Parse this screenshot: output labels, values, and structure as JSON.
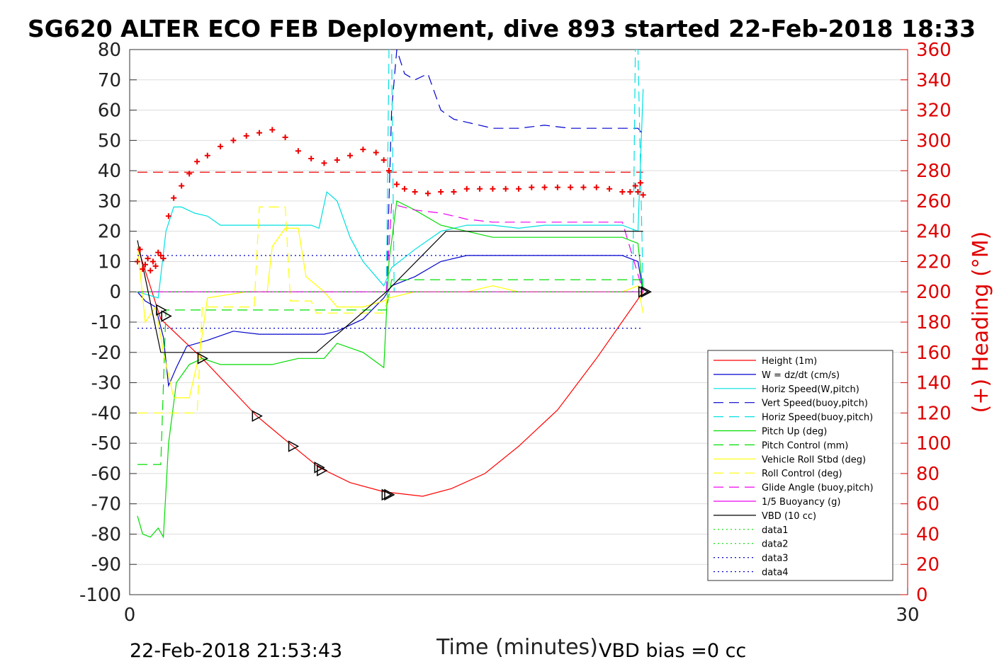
{
  "title": "SG620 ALTER ECO FEB Deployment, dive 893 started 22-Feb-2018 18:33",
  "footer_left": "22-Feb-2018 21:53:43",
  "footer_right": "VBD bias =0 cc",
  "colors": {
    "height": "#ff0000",
    "w": "#0000cc",
    "horiz": "#00e0e0",
    "pitch": "#00dd00",
    "roll": "#ffff00",
    "glide": "#ee00ee",
    "vbd": "#000000",
    "heading": "#ee0000"
  },
  "chart_data": {
    "type": "line",
    "xlabel": "Time (minutes)",
    "ylabel_right": "(+) Heading (°M)",
    "xlim": [
      0,
      30
    ],
    "ylim": [
      -100,
      80
    ],
    "ylim_right": [
      0,
      360
    ],
    "x_ticks": [
      "0",
      "30"
    ],
    "y_ticks": [
      "80",
      "70",
      "60",
      "50",
      "40",
      "30",
      "20",
      "10",
      "0",
      "-10",
      "-20",
      "-30",
      "-40",
      "-50",
      "-60",
      "-70",
      "-80",
      "-90",
      "-100"
    ],
    "y_ticks_right": [
      "360",
      "340",
      "320",
      "300",
      "280",
      "260",
      "240",
      "220",
      "200",
      "180",
      "160",
      "140",
      "120",
      "100",
      "80",
      "60",
      "40",
      "20",
      "0"
    ],
    "grid": "horizontal",
    "legend_position": "bottom-right",
    "series": [
      {
        "name": "Height (1m)",
        "color": "#ff0000",
        "dash": "solid",
        "x": [
          0.3,
          1.2,
          2.8,
          4.9,
          6.3,
          7.3,
          8.5,
          9.8,
          11.3,
          12.4,
          13.7,
          15.0,
          16.5,
          18.0,
          19.8
        ],
        "y": [
          15,
          -9,
          -22,
          -41,
          -51,
          -58,
          -63,
          -66,
          -67.5,
          -65,
          -60,
          -51,
          -39,
          -22,
          0
        ]
      },
      {
        "name": "W = dz/dt (cm/s)",
        "color": "#0000cc",
        "dash": "solid",
        "x": [
          0.3,
          0.6,
          1.0,
          1.3,
          1.5,
          1.8,
          2.2,
          3.0,
          4.0,
          5.0,
          6.0,
          7.0,
          7.5,
          8.0,
          9.0,
          9.8,
          10.1,
          11.0,
          12.0,
          13.0,
          14.0,
          15.0,
          16.0,
          17.0,
          18.0,
          19.0,
          19.6,
          19.8
        ],
        "y": [
          0,
          -3,
          -5,
          -15,
          -31,
          -25,
          -18,
          -16,
          -13,
          -14,
          -14,
          -14,
          -14,
          -13,
          -9,
          -2,
          2,
          5,
          10,
          12,
          12,
          12,
          12,
          12,
          12,
          12,
          10,
          0
        ]
      },
      {
        "name": "Horiz Speed(W,pitch)",
        "color": "#00e0e0",
        "dash": "solid",
        "x": [
          0.3,
          1.1,
          1.4,
          1.7,
          2.0,
          2.5,
          3.0,
          3.5,
          4.0,
          5.0,
          6.0,
          7.0,
          7.3,
          7.6,
          8.0,
          8.5,
          9.0,
          9.5,
          9.8,
          10.1,
          11.0,
          12.0,
          13.0,
          14.0,
          15.0,
          16.0,
          17.0,
          18.0,
          19.0,
          19.6,
          19.8
        ],
        "y": [
          0,
          -2,
          20,
          28,
          28,
          26,
          25,
          22,
          22,
          22,
          22,
          22,
          21,
          33,
          30,
          18,
          10,
          5,
          2,
          8,
          14,
          20,
          22,
          22,
          21,
          22,
          22,
          22,
          22,
          20,
          67
        ]
      },
      {
        "name": "Vert Speed(buoy,pitch)",
        "color": "#0000cc",
        "dash": "long",
        "x": [
          9.9,
          10.1,
          10.3,
          10.6,
          11.0,
          11.5,
          12.0,
          12.5,
          13.0,
          14.0,
          15.0,
          16.0,
          17.0,
          18.0,
          19.0,
          19.6,
          19.8
        ],
        "y": [
          0,
          60,
          80,
          72,
          70,
          72,
          60,
          57,
          56,
          54,
          54,
          55,
          54,
          54,
          54,
          54,
          52
        ]
      },
      {
        "name": "Horiz Speed(buoy,pitch)",
        "color": "#00e0e0",
        "dash": "long",
        "x": [
          9.9,
          10.0,
          10.1,
          10.2,
          19.4,
          19.5,
          19.6,
          19.7,
          19.8
        ],
        "y": [
          0,
          80,
          80,
          0,
          0,
          80,
          80,
          40,
          0
        ]
      },
      {
        "name": "Pitch Up (deg)",
        "color": "#00dd00",
        "dash": "solid",
        "x": [
          0.3,
          0.5,
          0.8,
          1.1,
          1.3,
          1.5,
          1.8,
          2.3,
          2.8,
          3.5,
          4.5,
          5.5,
          6.5,
          7.0,
          7.5,
          8.0,
          9.0,
          9.8,
          10.0,
          10.3,
          11.0,
          12.0,
          13.0,
          14.0,
          15.0,
          16.0,
          17.0,
          18.0,
          19.0,
          19.6,
          19.8
        ],
        "y": [
          -74,
          -80,
          -81,
          -78,
          -81,
          -50,
          -30,
          -24,
          -22,
          -24,
          -24,
          -24,
          -22,
          -22,
          -22,
          -17,
          -20,
          -25,
          10,
          30,
          27,
          22,
          20,
          18,
          18,
          18,
          18,
          18,
          18,
          16,
          0
        ]
      },
      {
        "name": "Pitch Control (mm)",
        "color": "#00dd00",
        "dash": "long",
        "x": [
          0.3,
          1.2,
          1.4,
          9.9,
          10.1,
          19.8
        ],
        "y": [
          -57,
          -57,
          -6,
          -6,
          4,
          4
        ]
      },
      {
        "name": "Vehicle Roll Stbd (deg)",
        "color": "#ffff00",
        "dash": "solid",
        "x": [
          0.3,
          0.6,
          1.0,
          1.3,
          1.7,
          2.3,
          2.7,
          3.0,
          4.5,
          5.0,
          5.3,
          5.5,
          6.0,
          6.3,
          6.5,
          6.8,
          7.5,
          8.0,
          9.0,
          9.8,
          10.0,
          11.0,
          12.0,
          13.0,
          14.0,
          15.0,
          16.0,
          17.0,
          18.0,
          19.0,
          19.6,
          19.8
        ],
        "y": [
          15,
          -10,
          -5,
          -20,
          -35,
          -35,
          -20,
          -2,
          0,
          0,
          0,
          15,
          21,
          21,
          21,
          5,
          0,
          -5,
          -5,
          -3,
          -2,
          0,
          0,
          0,
          2,
          0,
          0,
          0,
          0,
          0,
          2,
          -7
        ]
      },
      {
        "name": "Roll Control (deg)",
        "color": "#ffff00",
        "dash": "long",
        "x": [
          0.3,
          1.2,
          1.4,
          2.6,
          2.8,
          4.8,
          5.0,
          6.0,
          6.2,
          7.0,
          7.2,
          9.8,
          10.0,
          19.8
        ],
        "y": [
          -40,
          -40,
          -40,
          -40,
          -5,
          -5,
          28,
          28,
          -3,
          -3,
          -7,
          -7,
          0,
          0
        ]
      },
      {
        "name": "Glide Angle (buoy,pitch)",
        "color": "#ee00ee",
        "dash": "long",
        "x": [
          0.3,
          9.9,
          10.1,
          11.0,
          12.0,
          13.0,
          14.0,
          15.0,
          16.0,
          17.0,
          18.0,
          19.0,
          19.8
        ],
        "y": [
          0,
          0,
          29,
          27,
          26,
          24,
          23,
          23,
          23,
          23,
          23,
          23,
          0
        ]
      },
      {
        "name": "1/5 Buoyancy (g)",
        "color": "#ee00ee",
        "dash": "solid",
        "x": [
          0.3,
          19.8
        ],
        "y": [
          0,
          0
        ]
      },
      {
        "name": "VBD (10 cc)",
        "color": "#000000",
        "dash": "solid",
        "x": [
          0.3,
          1.2,
          7.2,
          9.9,
          12.2,
          19.8
        ],
        "y": [
          17,
          -20,
          -20,
          0,
          20,
          20
        ]
      },
      {
        "name": "data1",
        "color": "#00dd00",
        "dash": "dotted",
        "x": [
          0.3,
          19.8
        ],
        "y": [
          0,
          0
        ]
      },
      {
        "name": "data2",
        "color": "#00dd00",
        "dash": "dotted",
        "x": [
          0.3,
          19.8
        ],
        "y": [
          0,
          0
        ]
      },
      {
        "name": "data3",
        "color": "#0000cc",
        "dash": "dotted",
        "x": [
          0.3,
          19.8
        ],
        "y": [
          12,
          12
        ]
      },
      {
        "name": "data4",
        "color": "#0000cc",
        "dash": "dotted",
        "x": [
          0.3,
          19.8
        ],
        "y": [
          -12,
          -12
        ]
      }
    ],
    "heading_reference": {
      "axis": "right",
      "value": 279,
      "color": "#ee0000",
      "dash": "long"
    },
    "heading_points": {
      "axis": "right",
      "color": "#ee0000",
      "x": [
        0.3,
        0.4,
        0.5,
        0.6,
        0.7,
        0.8,
        0.9,
        1.0,
        1.1,
        1.2,
        1.3,
        1.5,
        1.7,
        2.0,
        2.3,
        2.6,
        3.0,
        3.5,
        4.0,
        4.5,
        5.0,
        5.5,
        6.0,
        6.5,
        7.0,
        7.5,
        8.0,
        8.5,
        9.0,
        9.5,
        9.8,
        10.0,
        10.3,
        10.6,
        11.0,
        11.5,
        12.0,
        12.5,
        13.0,
        13.5,
        14.0,
        14.5,
        15.0,
        15.5,
        16.0,
        16.5,
        17.0,
        17.5,
        18.0,
        18.5,
        19.0,
        19.3,
        19.5,
        19.6,
        19.7,
        19.8
      ],
      "y": [
        220,
        228,
        215,
        218,
        222,
        214,
        220,
        217,
        226,
        224,
        222,
        250,
        262,
        270,
        278,
        286,
        290,
        296,
        300,
        303,
        305,
        307,
        302,
        293,
        288,
        285,
        287,
        290,
        294,
        292,
        287,
        280,
        271,
        268,
        266,
        265,
        266,
        266,
        268,
        268,
        268,
        268,
        268,
        269,
        269,
        269,
        269,
        269,
        269,
        268,
        266,
        266,
        270,
        266,
        272,
        264
      ]
    },
    "markers": {
      "symbol": "triangle",
      "x": [
        1.2,
        1.4,
        2.8,
        4.9,
        6.3,
        7.3,
        7.4,
        9.9,
        10.0,
        19.8,
        19.9
      ],
      "y": [
        -6,
        -8,
        -22,
        -41,
        -51,
        -58,
        -59,
        -67,
        -67,
        0,
        0
      ]
    }
  }
}
